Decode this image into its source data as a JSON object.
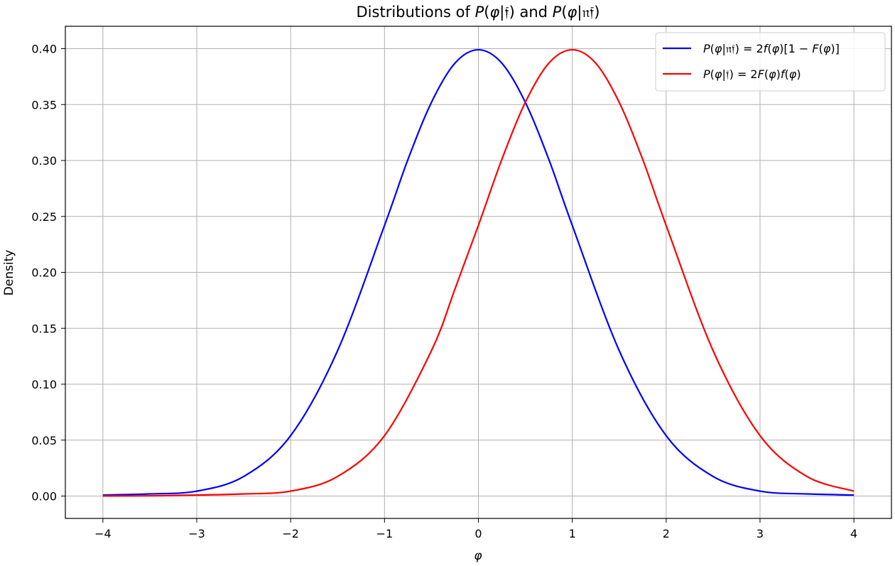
{
  "chart_data": {
    "type": "line",
    "title_parts": [
      {
        "text": "Distributions of ",
        "math": false
      },
      {
        "text": "P",
        "math": true
      },
      {
        "text": "(",
        "math": false
      },
      {
        "text": "φ",
        "math": true
      },
      {
        "text": "|𝔣) and ",
        "math": false
      },
      {
        "text": "P",
        "math": true
      },
      {
        "text": "(",
        "math": false
      },
      {
        "text": "φ",
        "math": true
      },
      {
        "text": "|𝔫𝔣)",
        "math": false
      }
    ],
    "xlabel": "φ",
    "ylabel": "Density",
    "xlim": [
      -4.4,
      4.4
    ],
    "ylim": [
      -0.02,
      0.42
    ],
    "x_ticks": [
      -4,
      -3,
      -2,
      -1,
      0,
      1,
      2,
      3,
      4
    ],
    "x_tick_labels": [
      "−4",
      "−3",
      "−2",
      "−1",
      "0",
      "1",
      "2",
      "3",
      "4"
    ],
    "y_ticks": [
      0.0,
      0.05,
      0.1,
      0.15,
      0.2,
      0.25,
      0.3,
      0.35,
      0.4
    ],
    "y_tick_labels": [
      "0.00",
      "0.05",
      "0.10",
      "0.15",
      "0.20",
      "0.25",
      "0.30",
      "0.35",
      "0.40"
    ],
    "grid": true,
    "legend_position": "top-right",
    "series": [
      {
        "name": "P(φ|𝔫𝔣) = 2f(φ)[1 − F(φ)]",
        "legend_parts": [
          {
            "text": "P",
            "math": true
          },
          {
            "text": "(",
            "math": false
          },
          {
            "text": "φ",
            "math": true
          },
          {
            "text": "|𝔫𝔣) = 2",
            "math": false
          },
          {
            "text": "f",
            "math": true
          },
          {
            "text": "(",
            "math": false
          },
          {
            "text": "φ",
            "math": true
          },
          {
            "text": ")[1 − ",
            "math": false
          },
          {
            "text": "F",
            "math": true
          },
          {
            "text": "(",
            "math": false
          },
          {
            "text": "φ",
            "math": true
          },
          {
            "text": ")]",
            "math": false
          }
        ],
        "color": "#0000ff",
        "x": [
          -4.0,
          -3.5,
          -3.0,
          -2.5,
          -2.0,
          -1.5,
          -1.0,
          -0.75,
          -0.5,
          -0.25,
          0.0,
          0.25,
          0.5,
          0.75,
          1.0,
          1.5,
          2.0,
          2.5,
          3.0,
          3.5,
          4.0
        ],
        "y": [
          0.0009,
          0.0019,
          0.0044,
          0.0175,
          0.054,
          0.13,
          0.242,
          0.301,
          0.352,
          0.387,
          0.399,
          0.387,
          0.352,
          0.301,
          0.242,
          0.13,
          0.054,
          0.0175,
          0.0044,
          0.0019,
          0.0009
        ]
      },
      {
        "name": "P(φ|𝔣) = 2F(φ)f(φ)",
        "legend_parts": [
          {
            "text": "P",
            "math": true
          },
          {
            "text": "(",
            "math": false
          },
          {
            "text": "φ",
            "math": true
          },
          {
            "text": "|𝔣) = 2",
            "math": false
          },
          {
            "text": "F",
            "math": true
          },
          {
            "text": "(",
            "math": false
          },
          {
            "text": "φ",
            "math": true
          },
          {
            "text": ")",
            "math": false
          },
          {
            "text": "f",
            "math": true
          },
          {
            "text": "(",
            "math": false
          },
          {
            "text": "φ",
            "math": true
          },
          {
            "text": ")",
            "math": false
          }
        ],
        "color": "#ff0000",
        "x": [
          -4.0,
          -3.5,
          -3.0,
          -2.5,
          -2.0,
          -1.5,
          -1.0,
          -0.5,
          -0.25,
          0.0,
          0.25,
          0.5,
          0.75,
          1.0,
          1.25,
          1.5,
          1.75,
          2.0,
          2.5,
          3.0,
          3.5,
          4.0
        ],
        "y": [
          0.0001,
          0.0002,
          0.0009,
          0.0019,
          0.0044,
          0.0175,
          0.054,
          0.13,
          0.185,
          0.242,
          0.301,
          0.352,
          0.387,
          0.399,
          0.387,
          0.352,
          0.301,
          0.242,
          0.13,
          0.054,
          0.0175,
          0.0044
        ]
      }
    ]
  }
}
